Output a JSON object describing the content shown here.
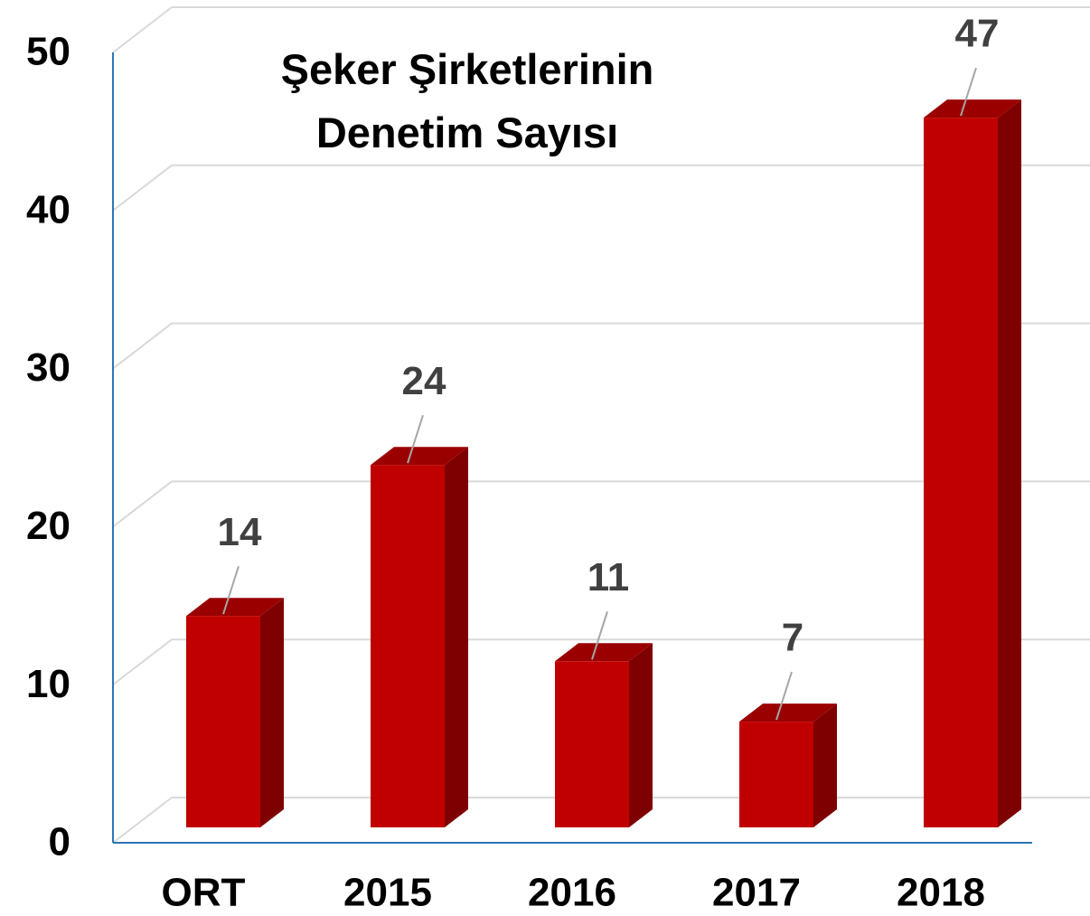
{
  "chart_data": {
    "type": "bar3d",
    "title": "Şeker Şirketlerinin Denetim Sayısı",
    "categories": [
      "ORT",
      "2015",
      "2016",
      "2017",
      "2018"
    ],
    "values": [
      14,
      24,
      11,
      7,
      47
    ],
    "color": "#c00000",
    "ylim": [
      0,
      50
    ],
    "yticks": [
      0,
      10,
      20,
      30,
      40,
      50
    ],
    "grid": true
  }
}
